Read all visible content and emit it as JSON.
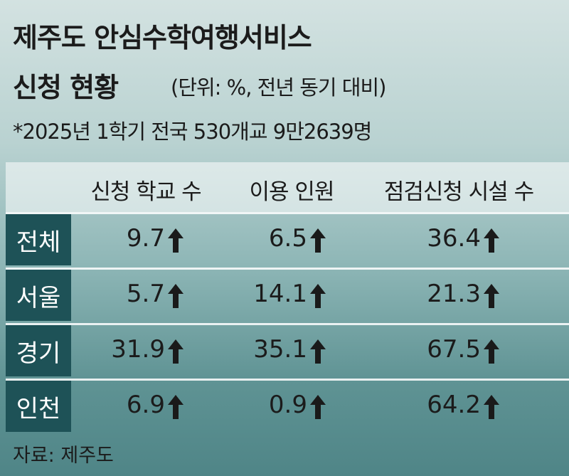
{
  "header": {
    "title": "제주도 안심수학여행서비스",
    "title2": "신청 현황",
    "unit": "(단위: %, 전년 동기 대비)",
    "note": "*2025년 1학기 전국 530개교 9만2639명"
  },
  "table": {
    "columns": [
      "신청 학교 수",
      "이용 인원",
      "점검신청 시설 수"
    ],
    "rows": [
      {
        "label": "전체",
        "values": [
          9.7,
          6.5,
          36.4
        ]
      },
      {
        "label": "서울",
        "values": [
          5.7,
          14.1,
          21.3
        ]
      },
      {
        "label": "경기",
        "values": [
          31.9,
          35.1,
          67.5
        ]
      },
      {
        "label": "인천",
        "values": [
          6.9,
          0.9,
          64.2
        ]
      }
    ]
  },
  "source": "자료: 제주도"
}
